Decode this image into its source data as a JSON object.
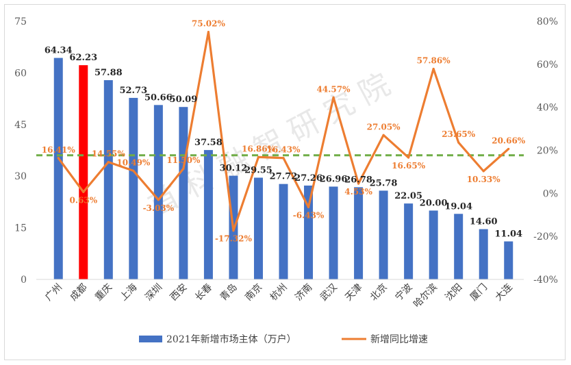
{
  "chart_data": {
    "type": "bar",
    "categories": [
      "广州",
      "成都",
      "重庆",
      "上海",
      "深圳",
      "西安",
      "长春",
      "青岛",
      "南京",
      "杭州",
      "济南",
      "武汉",
      "天津",
      "北京",
      "宁波",
      "哈尔滨",
      "沈阳",
      "厦门",
      "大连"
    ],
    "series": [
      {
        "name": "2021年新增市场主体（万户）",
        "type": "bar",
        "axis": "left",
        "values": [
          64.34,
          62.23,
          57.88,
          52.73,
          50.66,
          50.09,
          37.58,
          30.12,
          29.55,
          27.72,
          27.26,
          26.96,
          26.78,
          25.78,
          22.05,
          20.0,
          19.04,
          14.6,
          11.04
        ],
        "labels": [
          "64.34",
          "62.23",
          "57.88",
          "52.73",
          "50.66",
          "50.09",
          "37.58",
          "30.12",
          "29.55",
          "27.72",
          "27.26",
          "26.96",
          "26.78",
          "25.78",
          "22.05",
          "20.00",
          "19.04",
          "14.60",
          "11.04"
        ],
        "color": "#4472c4",
        "highlight": {
          "category": "成都",
          "color": "#ff0000"
        }
      },
      {
        "name": "新增同比增速",
        "type": "line",
        "axis": "right",
        "values": [
          16.41,
          0.63,
          14.55,
          10.49,
          -3.03,
          11.5,
          75.02,
          -17.32,
          16.86,
          16.43,
          -6.43,
          44.57,
          4.53,
          27.05,
          16.65,
          57.86,
          23.65,
          10.33,
          20.66
        ],
        "labels": [
          "16.41%",
          "0.63%",
          "14.55%",
          "10.49%",
          "-3.03%",
          "11.50%",
          "75.02%",
          "-17.32%",
          "16.86%",
          "16.43%",
          "-6.43%",
          "44.57%",
          "4.53%",
          "27.05%",
          "16.65%",
          "57.86%",
          "23.65%",
          "10.33%",
          "20.66%"
        ],
        "color": "#ed7d31"
      }
    ],
    "reference_line": {
      "axis": "right",
      "value": 17.7,
      "style": "dashed",
      "color": "#70ad47"
    },
    "y_left": {
      "ylim": [
        0,
        75
      ],
      "ticks": [
        "0",
        "15",
        "30",
        "45",
        "60",
        "75"
      ]
    },
    "y_right": {
      "ylim": [
        -40,
        80
      ],
      "ticks": [
        "-40%",
        "-20%",
        "0%",
        "20%",
        "40%",
        "60%",
        "80%"
      ]
    },
    "legend": {
      "position": "bottom"
    },
    "grid": false
  },
  "watermark": "首 科 融 智 研 究 院"
}
